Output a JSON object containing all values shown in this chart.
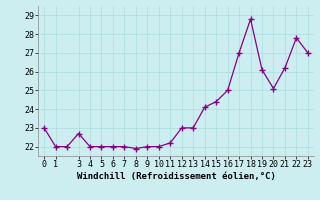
{
  "x": [
    0,
    1,
    2,
    3,
    4,
    5,
    6,
    7,
    8,
    9,
    10,
    11,
    12,
    13,
    14,
    15,
    16,
    17,
    18,
    19,
    20,
    21,
    22,
    23
  ],
  "y": [
    23,
    22,
    22,
    22.7,
    22,
    22,
    22,
    22,
    21.9,
    22,
    22,
    22.2,
    23,
    23,
    24.1,
    24.4,
    25,
    27,
    28.8,
    26.1,
    25.1,
    26.2,
    27.8,
    27
  ],
  "line_color": "#880088",
  "marker": "+",
  "xlabel": "Windchill (Refroidissement éolien,°C)",
  "xlim": [
    -0.5,
    23.5
  ],
  "ylim": [
    21.5,
    29.5
  ],
  "yticks": [
    22,
    23,
    24,
    25,
    26,
    27,
    28,
    29
  ],
  "xticks": [
    0,
    1,
    3,
    4,
    5,
    6,
    7,
    8,
    9,
    10,
    11,
    12,
    13,
    14,
    15,
    16,
    17,
    18,
    19,
    20,
    21,
    22,
    23
  ],
  "bg_color": "#cceef0",
  "grid_color": "#aadddd",
  "label_fontsize": 6.5,
  "tick_fontsize": 6.0
}
